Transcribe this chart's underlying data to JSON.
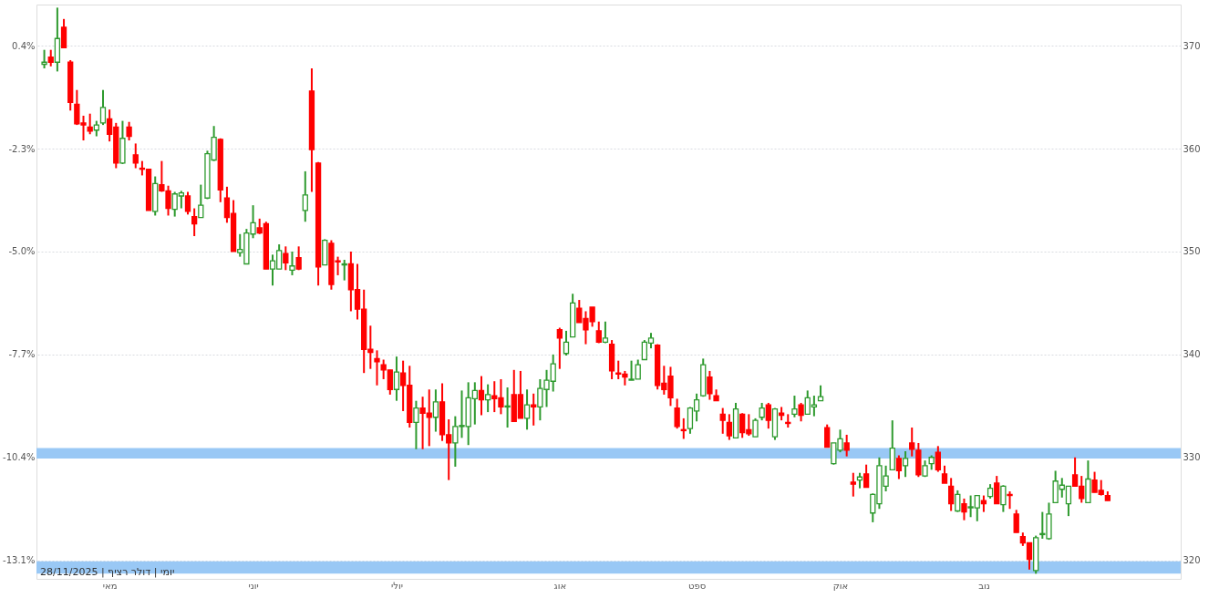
{
  "chart_data": {
    "type": "candlestick",
    "categories": [
      null,
      null,
      null,
      null,
      null,
      null,
      null,
      null,
      null,
      null,
      "מאי",
      null,
      null,
      null,
      null,
      null,
      null,
      null,
      null,
      null,
      null,
      null,
      null,
      null,
      null,
      null,
      null,
      null,
      null,
      null,
      null,
      null,
      "יוני",
      null,
      null,
      null,
      null,
      null,
      null,
      null,
      null,
      null,
      null,
      null,
      null,
      null,
      null,
      null,
      null,
      null,
      null,
      null,
      null,
      null,
      "יולי",
      null,
      null,
      null,
      null,
      null,
      null,
      null,
      null,
      null,
      null,
      null,
      null,
      null,
      null,
      null,
      null,
      null,
      null,
      null,
      null,
      null,
      null,
      null,
      null,
      "אוג",
      null,
      null,
      null,
      null,
      null,
      null,
      null,
      null,
      null,
      null,
      null,
      null,
      null,
      null,
      null,
      null,
      null,
      null,
      null,
      null,
      "ספט",
      null,
      null,
      null,
      null,
      null,
      null,
      null,
      null,
      null,
      null,
      null,
      null,
      null,
      null,
      null,
      null,
      null,
      null,
      null,
      null,
      null,
      "אוק",
      null,
      null,
      null,
      null,
      null,
      null,
      null,
      null,
      null,
      null,
      null,
      null,
      null,
      null,
      null,
      null,
      null,
      null,
      null,
      null,
      null,
      "נוב",
      null,
      null,
      null,
      null,
      null,
      null,
      null,
      null,
      null,
      null,
      null,
      null,
      null,
      null,
      null,
      null,
      null,
      null,
      null,
      null,
      null,
      null,
      null,
      null,
      null,
      null,
      null,
      null,
      null
    ],
    "ohlc": [
      [
        368.2,
        369.6,
        367.8,
        368.4
      ],
      [
        368.9,
        369.6,
        368.0,
        368.4
      ],
      [
        368.4,
        373.7,
        367.5,
        370.7
      ],
      [
        371.8,
        372.6,
        369.8,
        369.8
      ],
      [
        368.4,
        368.6,
        363.7,
        364.5
      ],
      [
        364.3,
        365.7,
        362.3,
        362.4
      ],
      [
        362.5,
        363.2,
        360.8,
        362.3
      ],
      [
        362.1,
        363.4,
        361.4,
        361.7
      ],
      [
        361.8,
        362.7,
        361.2,
        362.3
      ],
      [
        362.5,
        365.7,
        362.3,
        364.0
      ],
      [
        362.9,
        363.8,
        360.7,
        361.4
      ],
      [
        362.1,
        362.5,
        358.1,
        358.6
      ],
      [
        358.6,
        362.7,
        358.5,
        361.0
      ],
      [
        362.1,
        362.6,
        360.8,
        361.2
      ],
      [
        359.4,
        360.5,
        358.1,
        358.6
      ],
      [
        358.1,
        358.8,
        357.4,
        358.0
      ],
      [
        358.0,
        358.0,
        354.0,
        354.0
      ],
      [
        353.9,
        357.3,
        353.5,
        356.6
      ],
      [
        356.5,
        358.8,
        355.8,
        355.9
      ],
      [
        355.9,
        356.4,
        353.5,
        354.2
      ],
      [
        354.1,
        355.8,
        353.4,
        355.6
      ],
      [
        355.4,
        355.9,
        354.2,
        355.7
      ],
      [
        355.4,
        355.8,
        353.6,
        353.9
      ],
      [
        353.4,
        354.2,
        351.5,
        352.7
      ],
      [
        353.3,
        356.5,
        353.3,
        354.5
      ],
      [
        355.2,
        359.8,
        355.1,
        359.5
      ],
      [
        358.9,
        362.2,
        358.8,
        361.1
      ],
      [
        360.9,
        361.0,
        354.8,
        356.0
      ],
      [
        355.2,
        356.3,
        352.8,
        353.3
      ],
      [
        353.7,
        355.0,
        350.0,
        350.0
      ],
      [
        349.9,
        351.7,
        349.5,
        350.2
      ],
      [
        348.8,
        352.2,
        348.8,
        351.8
      ],
      [
        351.7,
        354.5,
        351.3,
        352.8
      ],
      [
        352.3,
        353.2,
        351.7,
        351.8
      ],
      [
        352.7,
        352.9,
        348.3,
        348.3
      ],
      [
        348.3,
        349.7,
        346.7,
        349.1
      ],
      [
        348.3,
        350.7,
        348.3,
        350.1
      ],
      [
        349.8,
        350.5,
        348.2,
        348.9
      ],
      [
        348.2,
        350.0,
        347.7,
        348.6
      ],
      [
        349.4,
        350.5,
        348.2,
        348.3
      ],
      [
        354.0,
        357.8,
        352.9,
        355.5
      ],
      [
        365.6,
        367.8,
        355.8,
        359.9
      ],
      [
        358.6,
        358.7,
        346.7,
        348.5
      ],
      [
        348.7,
        351.2,
        348.7,
        351.1
      ],
      [
        350.8,
        351.1,
        346.3,
        346.8
      ],
      [
        349.1,
        349.5,
        347.7,
        349.0
      ],
      [
        348.7,
        349.2,
        347.2,
        348.8
      ],
      [
        348.8,
        350.0,
        344.2,
        346.3
      ],
      [
        346.3,
        348.8,
        343.4,
        344.4
      ],
      [
        344.4,
        346.3,
        338.2,
        340.5
      ],
      [
        340.5,
        342.8,
        338.6,
        340.2
      ],
      [
        339.6,
        340.4,
        337.0,
        339.3
      ],
      [
        339.0,
        339.5,
        337.6,
        338.5
      ],
      [
        338.5,
        338.5,
        336.1,
        336.6
      ],
      [
        336.6,
        339.8,
        335.5,
        338.3
      ],
      [
        338.2,
        339.4,
        334.5,
        337.0
      ],
      [
        337.0,
        338.9,
        332.9,
        333.4
      ],
      [
        333.4,
        335.5,
        330.8,
        334.8
      ],
      [
        334.8,
        335.9,
        330.8,
        334.3
      ],
      [
        334.3,
        336.6,
        331.1,
        333.9
      ],
      [
        333.9,
        336.6,
        332.5,
        335.4
      ],
      [
        335.4,
        337.2,
        331.6,
        332.2
      ],
      [
        332.2,
        333.7,
        327.8,
        331.4
      ],
      [
        331.4,
        334.0,
        329.1,
        333.0
      ],
      [
        333.0,
        336.5,
        331.9,
        333.1
      ],
      [
        333.0,
        337.3,
        331.2,
        335.8
      ],
      [
        335.7,
        337.3,
        333.2,
        336.5
      ],
      [
        336.5,
        337.9,
        334.1,
        335.6
      ],
      [
        335.6,
        337.1,
        334.4,
        336.1
      ],
      [
        336.0,
        337.4,
        334.4,
        335.7
      ],
      [
        335.8,
        337.6,
        334.2,
        334.9
      ],
      [
        334.9,
        336.8,
        332.9,
        335.0
      ],
      [
        336.1,
        338.5,
        333.5,
        333.5
      ],
      [
        336.1,
        338.4,
        333.8,
        333.8
      ],
      [
        333.8,
        336.6,
        332.7,
        335.1
      ],
      [
        335.1,
        336.2,
        333.1,
        334.9
      ],
      [
        334.9,
        337.6,
        333.6,
        336.7
      ],
      [
        336.6,
        338.5,
        334.9,
        337.5
      ],
      [
        337.4,
        340.0,
        336.4,
        339.1
      ],
      [
        342.4,
        342.6,
        338.6,
        341.6
      ],
      [
        340.1,
        342.3,
        339.9,
        341.2
      ],
      [
        341.7,
        345.9,
        341.7,
        345.0
      ],
      [
        344.5,
        345.3,
        343.1,
        343.1
      ],
      [
        343.5,
        344.2,
        341.0,
        342.4
      ],
      [
        344.6,
        344.6,
        342.7,
        343.2
      ],
      [
        342.3,
        343.2,
        341.1,
        341.2
      ],
      [
        341.2,
        343.2,
        341.1,
        341.6
      ],
      [
        341.0,
        341.4,
        337.6,
        338.4
      ],
      [
        338.2,
        339.4,
        337.6,
        338.1
      ],
      [
        338.1,
        338.4,
        337.0,
        337.8
      ],
      [
        337.5,
        339.4,
        337.5,
        337.6
      ],
      [
        337.6,
        339.5,
        337.6,
        339.0
      ],
      [
        339.5,
        341.4,
        339.5,
        341.2
      ],
      [
        341.1,
        342.1,
        340.6,
        341.6
      ],
      [
        340.9,
        341.0,
        336.6,
        337.0
      ],
      [
        337.2,
        338.9,
        336.1,
        336.6
      ],
      [
        337.9,
        338.8,
        335.0,
        335.8
      ],
      [
        334.8,
        335.7,
        332.8,
        333.0
      ],
      [
        332.7,
        333.8,
        331.8,
        332.6
      ],
      [
        332.8,
        334.9,
        332.3,
        334.8
      ],
      [
        334.5,
        336.2,
        333.5,
        335.6
      ],
      [
        336.0,
        339.6,
        335.9,
        339.0
      ],
      [
        337.8,
        338.4,
        335.6,
        336.2
      ],
      [
        336.0,
        336.6,
        335.5,
        335.5
      ],
      [
        334.2,
        334.8,
        332.3,
        333.6
      ],
      [
        333.4,
        334.2,
        331.7,
        332.1
      ],
      [
        331.9,
        335.3,
        331.9,
        334.7
      ],
      [
        334.2,
        334.3,
        331.9,
        332.4
      ],
      [
        332.7,
        334.2,
        332.1,
        332.3
      ],
      [
        332.0,
        333.8,
        332.0,
        333.6
      ],
      [
        333.9,
        335.3,
        333.6,
        334.8
      ],
      [
        335.1,
        335.3,
        332.8,
        333.6
      ],
      [
        332.0,
        334.8,
        331.7,
        334.7
      ],
      [
        334.3,
        334.9,
        333.6,
        334.1
      ],
      [
        333.4,
        334.2,
        332.9,
        333.3
      ],
      [
        334.2,
        336.0,
        333.9,
        334.7
      ],
      [
        335.1,
        335.3,
        333.5,
        334.1
      ],
      [
        334.2,
        336.5,
        334.2,
        335.8
      ],
      [
        334.9,
        336.0,
        334.0,
        335.1
      ],
      [
        335.5,
        337.0,
        335.5,
        335.9
      ],
      [
        332.9,
        333.2,
        331.0,
        331.0
      ],
      [
        329.4,
        331.4,
        329.3,
        331.4
      ],
      [
        330.7,
        332.7,
        330.5,
        331.8
      ],
      [
        331.4,
        332.2,
        330.1,
        330.7
      ],
      [
        327.6,
        328.5,
        326.2,
        327.4
      ],
      [
        327.8,
        328.5,
        327.0,
        328.1
      ],
      [
        328.4,
        329.3,
        327.1,
        327.1
      ],
      [
        324.6,
        326.5,
        323.7,
        326.4
      ],
      [
        325.5,
        330.0,
        325.0,
        329.2
      ],
      [
        327.2,
        329.2,
        326.7,
        328.2
      ],
      [
        328.8,
        333.6,
        328.8,
        330.9
      ],
      [
        329.9,
        330.2,
        327.9,
        328.7
      ],
      [
        329.2,
        330.6,
        328.1,
        329.9
      ],
      [
        331.4,
        332.9,
        330.1,
        330.8
      ],
      [
        330.7,
        331.4,
        328.1,
        328.3
      ],
      [
        328.2,
        329.7,
        328.1,
        329.2
      ],
      [
        329.4,
        330.2,
        328.8,
        330.0
      ],
      [
        330.5,
        331.1,
        328.6,
        328.8
      ],
      [
        328.4,
        329.2,
        327.5,
        327.5
      ],
      [
        327.2,
        328.0,
        324.8,
        325.5
      ],
      [
        324.8,
        326.8,
        324.7,
        326.4
      ],
      [
        325.5,
        326.0,
        323.9,
        324.7
      ],
      [
        325.1,
        326.3,
        324.2,
        325.2
      ],
      [
        325.1,
        326.3,
        323.8,
        326.3
      ],
      [
        325.8,
        326.3,
        324.7,
        325.5
      ],
      [
        326.2,
        327.4,
        326.0,
        327.0
      ],
      [
        327.5,
        328.2,
        325.5,
        325.5
      ],
      [
        325.4,
        327.3,
        324.7,
        327.2
      ],
      [
        326.4,
        326.7,
        325.0,
        326.3
      ],
      [
        324.5,
        324.9,
        322.7,
        322.7
      ],
      [
        322.3,
        322.7,
        321.4,
        321.7
      ],
      [
        321.7,
        321.7,
        319.1,
        320.1
      ],
      [
        319.0,
        322.4,
        318.7,
        322.2
      ],
      [
        322.5,
        324.7,
        322.1,
        322.6
      ],
      [
        322.1,
        325.6,
        322.0,
        324.5
      ],
      [
        325.6,
        328.7,
        325.6,
        327.7
      ],
      [
        326.9,
        328.0,
        326.1,
        327.3
      ],
      [
        325.5,
        327.2,
        324.3,
        327.2
      ],
      [
        328.3,
        330.0,
        327.2,
        327.2
      ],
      [
        327.2,
        328.2,
        325.6,
        326.0
      ],
      [
        325.6,
        329.7,
        325.6,
        327.9
      ],
      [
        327.8,
        328.6,
        326.6,
        326.6
      ],
      [
        326.8,
        327.8,
        326.3,
        326.4
      ],
      [
        326.3,
        326.7,
        325.8,
        325.8
      ],
      null,
      null,
      null,
      null,
      null,
      null,
      null,
      null,
      null,
      null
    ],
    "ylim": [
      318.2,
      374
    ],
    "yticks": [
      320,
      330,
      340,
      350,
      360,
      370
    ],
    "y2lim": [
      -13.59,
      1.48
    ],
    "y2ticks": [
      {
        "value": 0.4,
        "label": "0.4%"
      },
      {
        "value": -2.3,
        "label": "-2.3%"
      },
      {
        "value": -5.0,
        "label": "-5.0%"
      },
      {
        "value": -7.7,
        "label": "-7.7%"
      },
      {
        "value": -10.4,
        "label": "-10.4%"
      },
      {
        "value": -13.1,
        "label": "-13.1%"
      }
    ],
    "grid": "y",
    "bands": [
      {
        "axis": "y",
        "from": 329.9,
        "to": 330.9,
        "color": "#99c8f5"
      },
      {
        "axis": "y",
        "from": 318.7,
        "to": 319.9,
        "color": "#99c8f5"
      }
    ],
    "annotations": [
      "יומי | דולר רציף | 28/11/2025"
    ]
  }
}
